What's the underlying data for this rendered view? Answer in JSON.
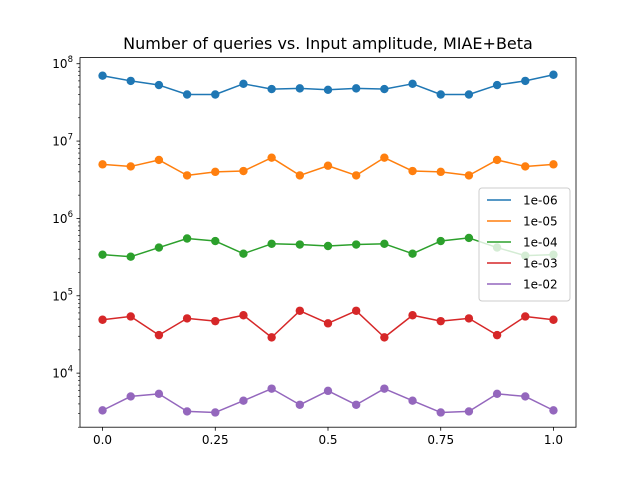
{
  "chart_data": {
    "type": "line",
    "title": "Number of queries vs. Input amplitude, MIAE+Beta",
    "xlabel": "",
    "ylabel": "",
    "xlim": [
      -0.05,
      1.05
    ],
    "ylim": [
      2000,
      120000000
    ],
    "yscale": "log",
    "grid": false,
    "legend_position": "center-right",
    "x": [
      0.0,
      0.0625,
      0.125,
      0.1875,
      0.25,
      0.3125,
      0.375,
      0.4375,
      0.5,
      0.5625,
      0.625,
      0.6875,
      0.75,
      0.8125,
      0.875,
      0.9375,
      1.0
    ],
    "x_ticks": [
      {
        "value": 0.0,
        "label": "0.0"
      },
      {
        "value": 0.25,
        "label": "0.25"
      },
      {
        "value": 0.5,
        "label": "0.5"
      },
      {
        "value": 0.75,
        "label": "0.75"
      },
      {
        "value": 1.0,
        "label": "1.0"
      }
    ],
    "y_ticks": [
      {
        "value": 10000,
        "base": "10",
        "exp": "4"
      },
      {
        "value": 100000,
        "base": "10",
        "exp": "5"
      },
      {
        "value": 1000000,
        "base": "10",
        "exp": "6"
      },
      {
        "value": 10000000,
        "base": "10",
        "exp": "7"
      },
      {
        "value": 100000000,
        "base": "10",
        "exp": "8"
      }
    ],
    "series": [
      {
        "name": "1e-06",
        "color": "#1f77b4",
        "values": [
          70000000,
          60000000,
          53000000,
          40000000,
          40000000,
          55000000,
          47000000,
          48000000,
          46000000,
          48000000,
          47000000,
          55000000,
          40000000,
          40000000,
          53000000,
          60000000,
          72000000
        ]
      },
      {
        "name": "1e-05",
        "color": "#ff7f0e",
        "values": [
          5000000,
          4700000,
          5700000,
          3600000,
          4000000,
          4100000,
          6100000,
          3600000,
          4800000,
          3600000,
          6100000,
          4100000,
          4000000,
          3600000,
          5700000,
          4700000,
          5000000
        ]
      },
      {
        "name": "1e-04",
        "color": "#2ca02c",
        "values": [
          340000,
          320000,
          420000,
          550000,
          510000,
          350000,
          470000,
          460000,
          440000,
          460000,
          470000,
          350000,
          510000,
          560000,
          420000,
          330000,
          340000
        ]
      },
      {
        "name": "1e-03",
        "color": "#d62728",
        "values": [
          49000,
          54000,
          31000,
          51000,
          47000,
          56000,
          29000,
          64000,
          44000,
          64000,
          29000,
          56000,
          47000,
          51000,
          31000,
          54000,
          49000
        ]
      },
      {
        "name": "1e-02",
        "color": "#9467bd",
        "values": [
          3300,
          5000,
          5400,
          3200,
          3100,
          4400,
          6300,
          3900,
          5900,
          3900,
          6300,
          4400,
          3100,
          3200,
          5400,
          5000,
          3300
        ]
      }
    ]
  }
}
